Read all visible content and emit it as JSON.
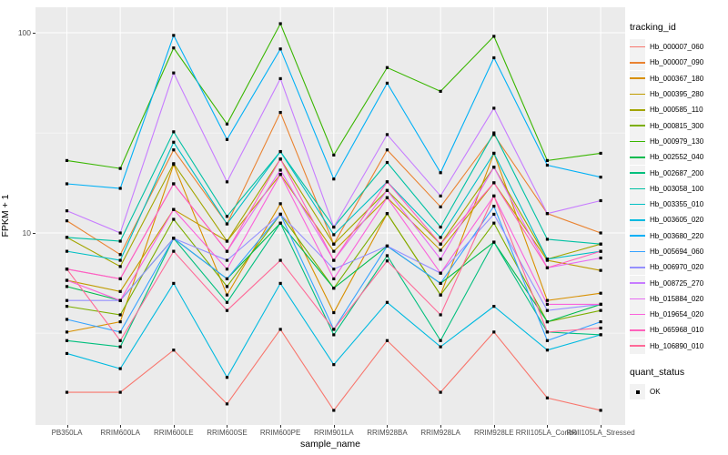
{
  "figure": {
    "background": "#FFFFFF",
    "panel_background": "#EBEBEB",
    "grid_color": "#FFFFFF",
    "tick_label_color": "#4D4D4D",
    "point_color": "#000000"
  },
  "axes": {
    "x_title": "sample_name",
    "y_title": "FPKM + 1",
    "y_tick_labels": [
      "100",
      "10"
    ],
    "y_tick_values": [
      100,
      10
    ]
  },
  "legend": {
    "tracking_title": "tracking_id",
    "quant_title": "quant_status",
    "quant_items": [
      {
        "label": "OK"
      }
    ]
  },
  "chart_data": {
    "type": "line",
    "title": "",
    "xlabel": "sample_name",
    "ylabel": "FPKM + 1",
    "y_scale": "log10",
    "ylim": [
      1,
      133
    ],
    "y_major_gridlines": [
      100,
      10
    ],
    "y_minor_gridlines": [
      31.6,
      3.16
    ],
    "grid": true,
    "legend_position": "right",
    "point_shape": "filled-square-black",
    "quant_status": "OK",
    "categories": [
      "PB350LA",
      "RRIM600LA",
      "RRIM600LE",
      "RRIM600SE",
      "RRIM600PE",
      "RRIM901LA",
      "RRIM928BA",
      "RRIM928LA",
      "RRIM928LE",
      "RRII105LA_Control",
      "RRII105LA_Stressed"
    ],
    "series": [
      {
        "name": "Hb_000007_060",
        "color": "#F8766D",
        "values": [
          1.6,
          1.6,
          2.6,
          1.4,
          3.3,
          1.3,
          2.9,
          1.6,
          3.2,
          1.5,
          1.3
        ]
      },
      {
        "name": "Hb_000007_090",
        "color": "#EA8331",
        "values": [
          11.5,
          7.8,
          26,
          11.1,
          40,
          8.8,
          26,
          13.5,
          31,
          12.5,
          10
        ]
      },
      {
        "name": "Hb_000367_180",
        "color": "#D89000",
        "values": [
          3.2,
          3.6,
          22,
          4.9,
          14,
          4.0,
          12.5,
          4.9,
          25,
          4.6,
          5.0
        ]
      },
      {
        "name": "Hb_000395_280",
        "color": "#C09B00",
        "values": [
          5.8,
          5.1,
          13.1,
          9.1,
          19.6,
          8.1,
          15,
          8.2,
          17.8,
          7.3,
          6.5
        ]
      },
      {
        "name": "Hb_000585_110",
        "color": "#A3A500",
        "values": [
          9.5,
          6.8,
          22.2,
          9.1,
          23.4,
          8.8,
          16.3,
          8.8,
          21.3,
          7.4,
          8.8
        ]
      },
      {
        "name": "Hb_000815_300",
        "color": "#7CAE00",
        "values": [
          4.3,
          3.9,
          11.7,
          5.4,
          12.4,
          5.3,
          12.5,
          4.9,
          11.2,
          3.6,
          4.1
        ]
      },
      {
        "name": "Hb_000979_130",
        "color": "#39B600",
        "values": [
          23,
          21,
          84,
          35,
          111,
          24.5,
          67,
          51,
          96,
          23,
          25
        ]
      },
      {
        "name": "Hb_002552_040",
        "color": "#00BB4E",
        "values": [
          5.4,
          4.6,
          9.4,
          5.9,
          11.2,
          5.3,
          8.6,
          5.6,
          9.0,
          3.6,
          4.4
        ]
      },
      {
        "name": "Hb_002687_200",
        "color": "#00BF7D",
        "values": [
          2.9,
          2.7,
          9.4,
          4.5,
          11.2,
          3.1,
          7.7,
          2.9,
          9.0,
          3.2,
          3.1
        ]
      },
      {
        "name": "Hb_003058_100",
        "color": "#00C1A3",
        "values": [
          9.5,
          9.1,
          32,
          12.1,
          25.5,
          10.7,
          22.5,
          10.7,
          31.6,
          9.3,
          8.8
        ]
      },
      {
        "name": "Hb_003355_010",
        "color": "#00BFC4",
        "values": [
          8.1,
          7.3,
          28.4,
          11.1,
          25.5,
          9.8,
          18,
          9.5,
          25,
          7.4,
          8.1
        ]
      },
      {
        "name": "Hb_003605_020",
        "color": "#00BAE0",
        "values": [
          2.5,
          2.1,
          5.6,
          1.9,
          5.6,
          2.2,
          4.5,
          2.7,
          4.3,
          2.6,
          3.1
        ]
      },
      {
        "name": "Hb_003680_220",
        "color": "#00B0F6",
        "values": [
          17.6,
          16.7,
          97,
          29.3,
          83,
          18.6,
          56,
          20,
          75,
          21.8,
          19
        ]
      },
      {
        "name": "Hb_005694_060",
        "color": "#35A2FF",
        "values": [
          3.7,
          3.2,
          9.4,
          5.9,
          12.4,
          3.3,
          8.6,
          5.6,
          13.6,
          2.9,
          3.6
        ]
      },
      {
        "name": "Hb_006970_020",
        "color": "#9590FF",
        "values": [
          4.6,
          4.6,
          9.4,
          7.3,
          12.4,
          6.6,
          8.6,
          6.3,
          12.4,
          4.1,
          4.4
        ]
      },
      {
        "name": "Hb_008725_270",
        "color": "#C77CFF",
        "values": [
          12.9,
          10,
          63,
          18,
          59,
          10.7,
          31,
          15.3,
          42,
          12.5,
          14.5
        ]
      },
      {
        "name": "Hb_015884_020",
        "color": "#E76BF3",
        "values": [
          6.6,
          5.9,
          17.6,
          8.1,
          20.6,
          7.3,
          16.3,
          7.4,
          21.3,
          6.7,
          7.5
        ]
      },
      {
        "name": "Hb_019654_020",
        "color": "#FA62DB",
        "values": [
          5.8,
          4.6,
          13.1,
          6.6,
          19.6,
          5.9,
          15,
          6.3,
          15.3,
          4.4,
          4.4
        ]
      },
      {
        "name": "Hb_065968_010",
        "color": "#FF62BC",
        "values": [
          6.6,
          5.9,
          17.6,
          8.1,
          23.4,
          7.3,
          18,
          8.8,
          17.8,
          6.7,
          8.1
        ]
      },
      {
        "name": "Hb_106890_010",
        "color": "#FF6A98",
        "values": [
          6.6,
          2.9,
          8.1,
          4.1,
          7.3,
          3.3,
          7.25,
          3.9,
          15.3,
          3.2,
          3.35
        ]
      }
    ]
  }
}
